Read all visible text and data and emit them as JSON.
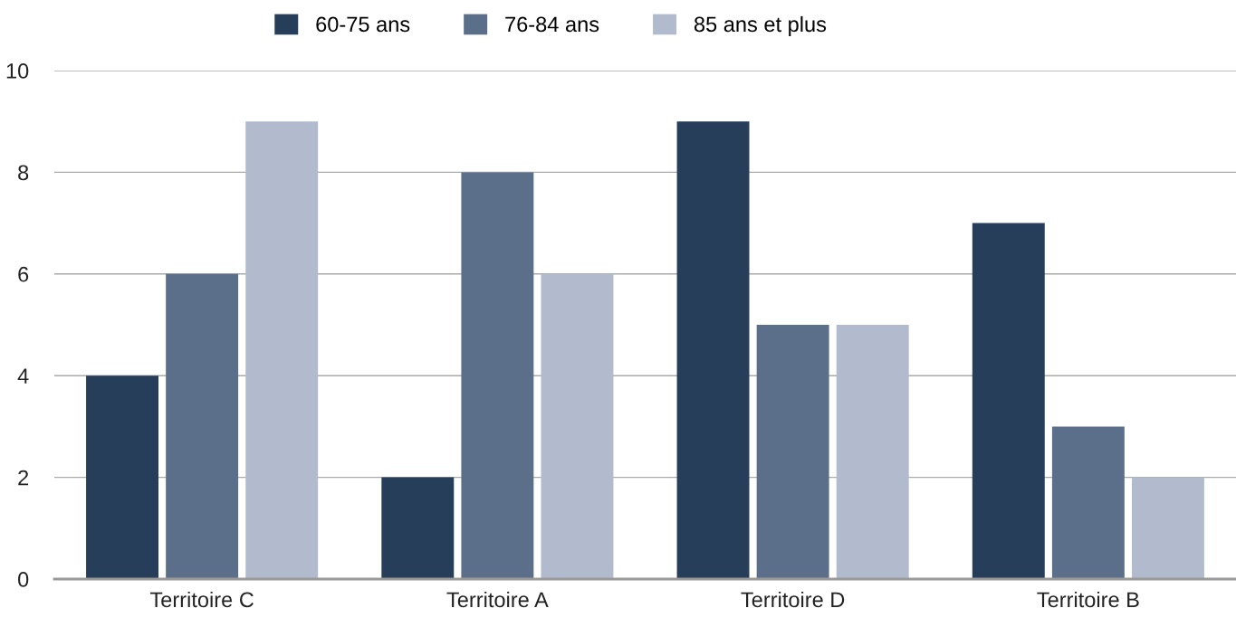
{
  "chart_data": {
    "type": "bar",
    "categories": [
      "Territoire C",
      "Territoire A",
      "Territoire D",
      "Territoire B"
    ],
    "series": [
      {
        "name": "60-75 ans",
        "color": "#263e5a",
        "values": [
          4,
          2,
          9,
          7
        ]
      },
      {
        "name": "76-84 ans",
        "color": "#5b6f8a",
        "values": [
          6,
          8,
          5,
          3
        ]
      },
      {
        "name": "85 ans et plus",
        "color": "#b2bace",
        "values": [
          9,
          6,
          5,
          2
        ]
      }
    ],
    "ylim": [
      0,
      10
    ],
    "yticks": [
      0,
      2,
      4,
      6,
      8,
      10
    ],
    "grid": "y",
    "legend": "top"
  }
}
